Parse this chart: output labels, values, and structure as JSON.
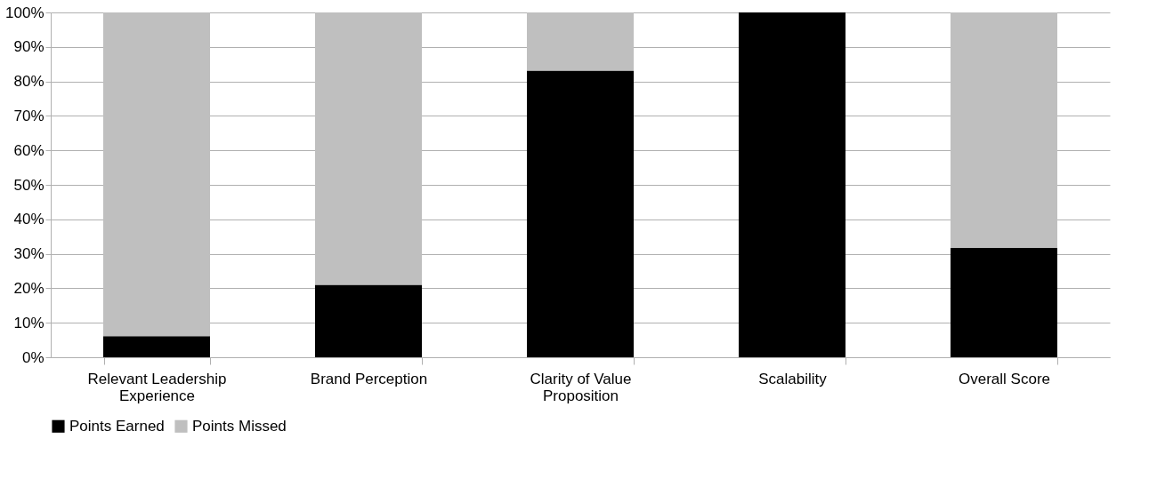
{
  "chart_data": {
    "type": "bar",
    "stacked": true,
    "categories": [
      "Relevant Leadership Experience",
      "Brand Perception",
      "Clarity of Value Proposition",
      "Scalability",
      "Overall Score"
    ],
    "series": [
      {
        "name": "Points Earned",
        "color": "#000000",
        "values": [
          6.1,
          21.0,
          83.1,
          100,
          31.7
        ]
      },
      {
        "name": "Points Missed",
        "color": "#bfbfbf",
        "values": [
          93.9,
          79.0,
          16.9,
          0,
          68.3
        ]
      }
    ],
    "ylim": [
      0,
      100
    ],
    "yticks": [
      {
        "value": 0,
        "label": "0%"
      },
      {
        "value": 10,
        "label": "10%"
      },
      {
        "value": 20,
        "label": "20%"
      },
      {
        "value": 30,
        "label": "30%"
      },
      {
        "value": 40,
        "label": "40%"
      },
      {
        "value": 50,
        "label": "50%"
      },
      {
        "value": 60,
        "label": "60%"
      },
      {
        "value": 70,
        "label": "70%"
      },
      {
        "value": 80,
        "label": "80%"
      },
      {
        "value": 90,
        "label": "90%"
      },
      {
        "value": 100,
        "label": "100%"
      }
    ],
    "grid": "y",
    "legend": "bottom"
  }
}
